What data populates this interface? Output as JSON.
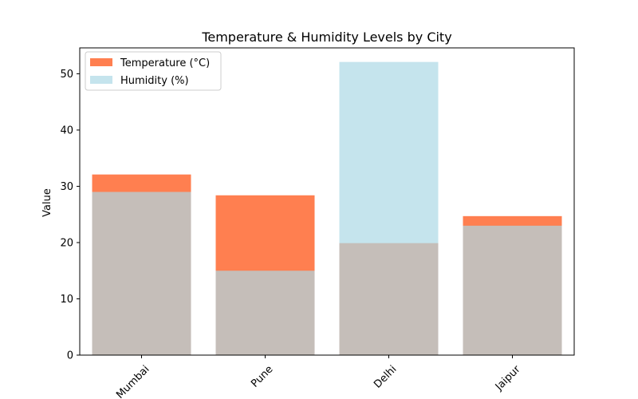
{
  "chart_data": {
    "type": "bar",
    "title": "Temperature & Humidity Levels by City",
    "xlabel": "",
    "ylabel": "Value",
    "categories": [
      "Mumbai",
      "Pune",
      "Delhi",
      "Jaipur"
    ],
    "ylim": [
      0,
      54.6
    ],
    "yticks": [
      0,
      10,
      20,
      30,
      40,
      50
    ],
    "grid": false,
    "legend_position": "top-left",
    "overlay": true,
    "series": [
      {
        "name": "Temperature (°C)",
        "values": [
          32.1,
          28.4,
          19.9,
          24.7
        ],
        "color": "#ff7f50",
        "opacity": 1
      },
      {
        "name": "Humidity (%)",
        "values": [
          29.0,
          15.0,
          52.1,
          23.0
        ],
        "color": "#add8e6",
        "opacity": 0.7
      }
    ]
  }
}
